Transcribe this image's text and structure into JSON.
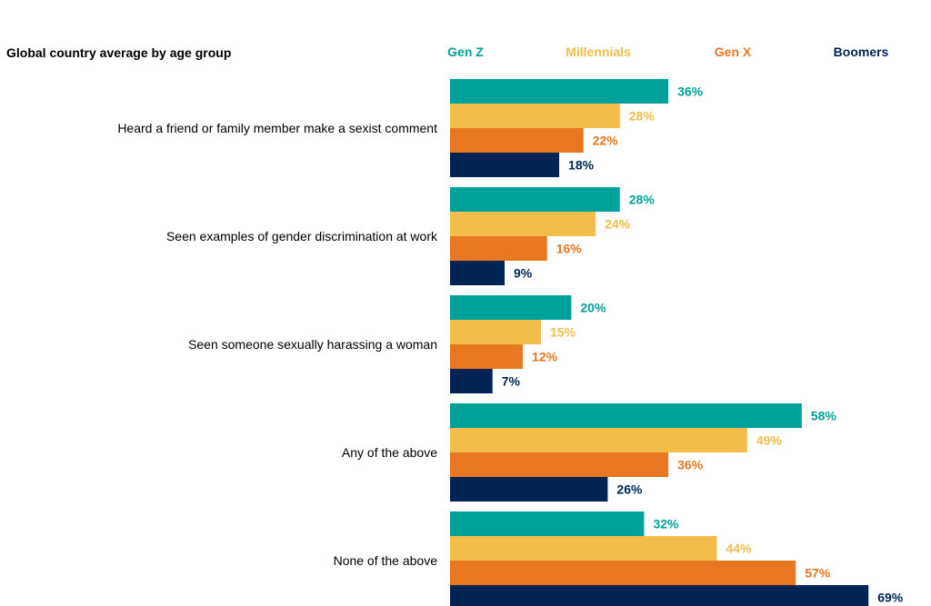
{
  "chart_data": {
    "type": "bar",
    "orientation": "horizontal",
    "title": "Global country average by age group",
    "categories": [
      "Heard a friend or family member make a sexist comment",
      "Seen examples of gender discrimination at work",
      "Seen someone sexually harassing a woman",
      "Any of the above",
      "None of the above"
    ],
    "series": [
      {
        "name": "Gen Z",
        "color": "#00a19a",
        "values": [
          36,
          28,
          20,
          58,
          32
        ]
      },
      {
        "name": "Millennials",
        "color": "#f2bd48",
        "values": [
          28,
          24,
          15,
          49,
          44
        ]
      },
      {
        "name": "Gen X",
        "color": "#e87722",
        "values": [
          22,
          16,
          12,
          36,
          57
        ]
      },
      {
        "name": "Boomers",
        "color": "#002554",
        "values": [
          18,
          9,
          7,
          26,
          69
        ]
      }
    ],
    "value_suffix": "%",
    "legend_position": "top",
    "grid": false
  }
}
